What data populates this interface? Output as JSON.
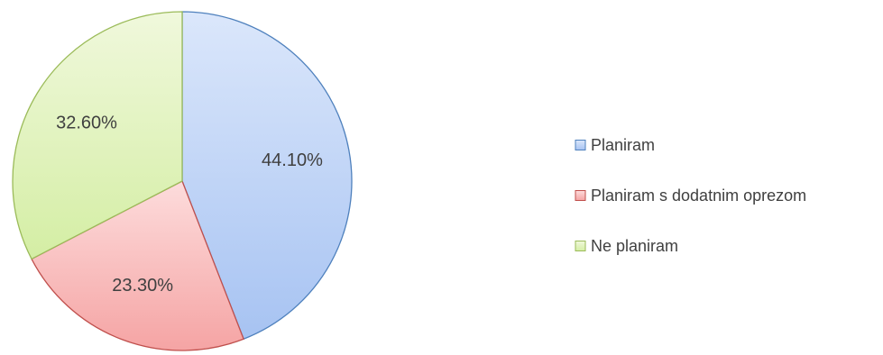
{
  "chart_data": {
    "type": "pie",
    "title": "",
    "slices": [
      {
        "label": "Planiram",
        "value": 44.1,
        "display": "44.10%"
      },
      {
        "label": "Planiram s dodatnim oprezom",
        "value": 23.3,
        "display": "23.30%"
      },
      {
        "label": "Ne planiram",
        "value": 32.6,
        "display": "32.60%"
      }
    ],
    "start_angle": "12 o'clock",
    "direction": "clockwise",
    "legend": {
      "position": "right"
    },
    "colors": {
      "Planiram": {
        "fill_light": "#dbe7fb",
        "fill_dark": "#a7c3f2",
        "stroke": "#4f81bd"
      },
      "Planiram s dodatnim oprezom": {
        "fill_light": "#fddcdc",
        "fill_dark": "#f5a4a4",
        "stroke": "#c0504d"
      },
      "Ne planiram": {
        "fill_light": "#f0f8dc",
        "fill_dark": "#d4eea4",
        "stroke": "#9bbb59"
      }
    }
  }
}
